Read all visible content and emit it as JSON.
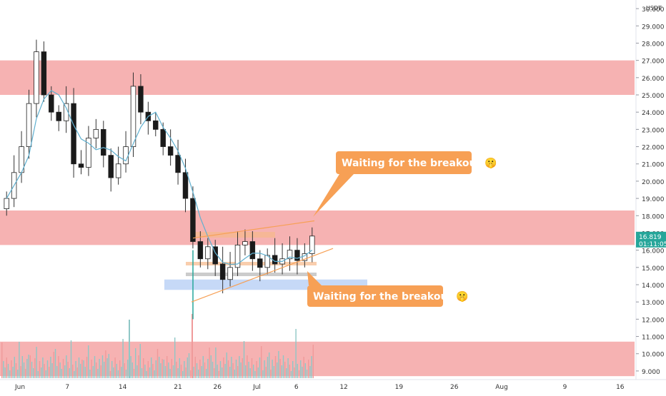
{
  "chart_data": {
    "type": "candlestick",
    "quote_currency": "USDT",
    "y_axis_ticks": [
      "9.000",
      "10.000",
      "11.000",
      "12.000",
      "13.000",
      "14.000",
      "15.000",
      "16.000",
      "17.000",
      "18.000",
      "19.000",
      "20.000",
      "21.000",
      "22.000",
      "23.000",
      "24.000",
      "25.000",
      "26.000",
      "27.000",
      "28.000",
      "29.000",
      "30.000"
    ],
    "x_axis_ticks": [
      {
        "label": "Jun",
        "bar": 0
      },
      {
        "label": "7",
        "bar": 6
      },
      {
        "label": "14",
        "bar": 13
      },
      {
        "label": "21",
        "bar": 20
      },
      {
        "label": "26",
        "bar": 25
      },
      {
        "label": "Jul",
        "bar": 30
      },
      {
        "label": "6",
        "bar": 35
      },
      {
        "label": "12",
        "bar": 41
      },
      {
        "label": "19",
        "bar": 48
      },
      {
        "label": "26",
        "bar": 55
      },
      {
        "label": "Aug",
        "bar": 61
      },
      {
        "label": "9",
        "bar": 69
      },
      {
        "label": "16",
        "bar": 76
      }
    ],
    "ylim": [
      8.5,
      30.5
    ],
    "bar_count_total": 80,
    "candles_close": [
      19.0,
      20.5,
      22.0,
      24.5,
      27.5,
      25.0,
      24.0,
      23.5,
      24.5,
      21.0,
      20.8,
      22.5,
      23.0,
      21.5,
      20.2,
      21.0,
      22.0,
      25.5,
      24.0,
      23.5,
      23.0,
      22.0,
      21.5,
      20.5,
      19.0,
      16.5,
      15.5,
      16.2,
      15.2,
      14.3,
      15.0,
      16.3,
      16.5,
      15.5,
      15.0,
      15.7,
      15.2,
      15.5,
      16.0,
      15.4,
      15.8,
      16.82
    ],
    "last_price": "16.819",
    "countdown": "01:11:05",
    "support_resistance_zones": [
      {
        "from": 25.0,
        "to": 27.0,
        "color": "#f5a5a5"
      },
      {
        "from": 16.3,
        "to": 18.3,
        "color": "#f5a5a5"
      },
      {
        "from": 8.7,
        "to": 10.7,
        "color": "#f5a5a5"
      }
    ],
    "demand_zone": {
      "from": 13.7,
      "to": 14.3,
      "color": "#b8cff5"
    },
    "annotations": [
      {
        "text": "Waiting for the breakout 🤫",
        "position": "upper"
      },
      {
        "text": "Waiting for the breakout 🤫",
        "position": "lower"
      }
    ],
    "colors": {
      "up": "#6f9fb0",
      "down": "#1a1a1a",
      "ma": "#5fb0d0",
      "label_bg": "#f7a055",
      "price_tag": "#26a69a"
    }
  }
}
